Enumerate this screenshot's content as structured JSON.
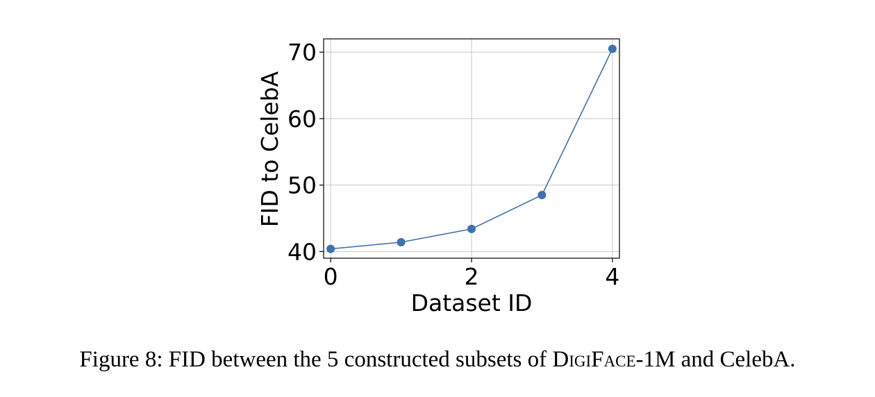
{
  "chart_data": {
    "type": "line",
    "x": [
      0,
      1,
      2,
      3,
      4
    ],
    "series": [
      {
        "values": [
          40.4,
          41.4,
          43.4,
          48.5,
          70.5
        ]
      }
    ],
    "xlabel": "Dataset ID",
    "ylabel": "FID to CelebA",
    "xlim": [
      -0.1,
      4.1
    ],
    "ylim": [
      39,
      72
    ],
    "xticks": [
      0,
      2,
      4
    ],
    "yticks": [
      40,
      50,
      60,
      70
    ],
    "grid": true,
    "line_color": "#3c72b0",
    "marker_color": "#3c72b0"
  },
  "caption": {
    "prefix": "Figure 8: FID between the 5 constructed subsets of ",
    "dataset_d": "D",
    "dataset_igi": "igi",
    "dataset_f": "F",
    "dataset_ace": "ace",
    "dataset_suffix": "-1M",
    "suffix": " and CelebA."
  }
}
